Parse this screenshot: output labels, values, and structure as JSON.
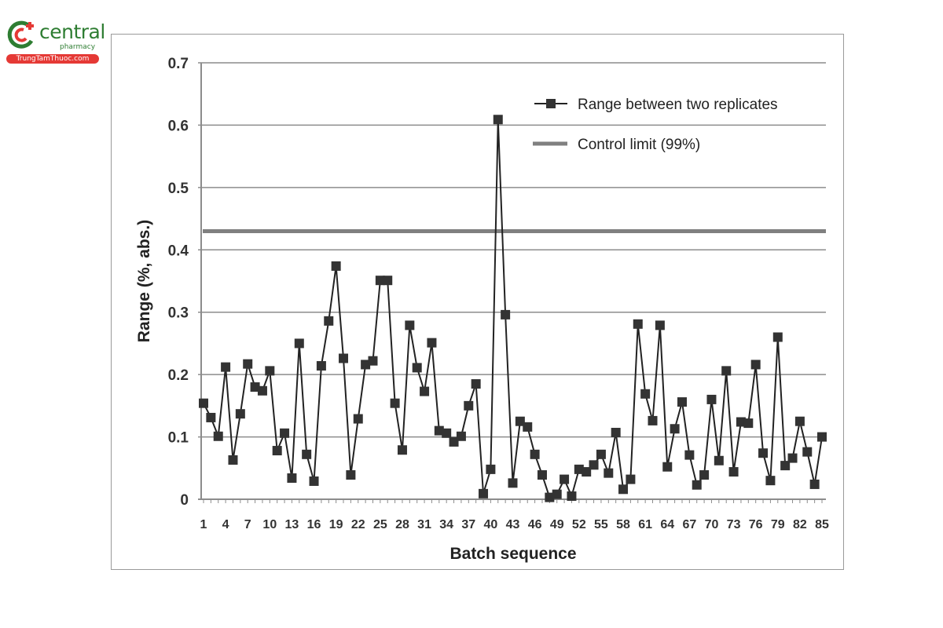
{
  "logo": {
    "brand": "central",
    "subtitle": "pharmacy",
    "site": "TrungTamThuoc.com",
    "colors": {
      "green": "#2e7d32",
      "red": "#e53935"
    }
  },
  "chart_data": {
    "type": "line",
    "title": "",
    "xlabel": "Batch sequence",
    "ylabel": "Range (%, abs.)",
    "ylim": [
      0,
      0.7
    ],
    "xlim": [
      1,
      85
    ],
    "grid": true,
    "legend_position": "upper right",
    "y_ticks": [
      "0",
      "0.1",
      "0.2",
      "0.3",
      "0.4",
      "0.5",
      "0.6",
      "0.7"
    ],
    "x_ticks": [
      "1",
      "4",
      "7",
      "10",
      "13",
      "16",
      "19",
      "22",
      "25",
      "28",
      "31",
      "34",
      "37",
      "40",
      "43",
      "46",
      "49",
      "52",
      "55",
      "58",
      "61",
      "64",
      "67",
      "70",
      "73",
      "76",
      "79",
      "82",
      "85"
    ],
    "x": [
      1,
      2,
      3,
      4,
      5,
      6,
      7,
      8,
      9,
      10,
      11,
      12,
      13,
      14,
      15,
      16,
      17,
      18,
      19,
      20,
      21,
      22,
      23,
      24,
      25,
      26,
      27,
      28,
      29,
      30,
      31,
      32,
      33,
      34,
      35,
      36,
      37,
      38,
      39,
      40,
      41,
      42,
      43,
      44,
      45,
      46,
      47,
      48,
      49,
      50,
      51,
      52,
      53,
      54,
      55,
      56,
      57,
      58,
      59,
      60,
      61,
      62,
      63,
      64,
      65,
      66,
      67,
      68,
      69,
      70,
      71,
      72,
      73,
      74,
      75,
      76,
      77,
      78,
      79,
      80,
      81,
      82,
      83,
      84,
      85
    ],
    "series": [
      {
        "name": "Range between two replicates",
        "marker": "square",
        "color": "#222222",
        "values": [
          0.154,
          0.131,
          0.101,
          0.212,
          0.063,
          0.137,
          0.217,
          0.18,
          0.174,
          0.206,
          0.078,
          0.106,
          0.034,
          0.25,
          0.072,
          0.029,
          0.214,
          0.286,
          0.374,
          0.226,
          0.039,
          0.129,
          0.216,
          0.222,
          0.351,
          0.351,
          0.154,
          0.079,
          0.279,
          0.211,
          0.173,
          0.251,
          0.11,
          0.106,
          0.092,
          0.101,
          0.15,
          0.185,
          0.009,
          0.048,
          0.609,
          0.296,
          0.026,
          0.125,
          0.116,
          0.072,
          0.039,
          0.003,
          0.008,
          0.032,
          0.005,
          0.048,
          0.044,
          0.055,
          0.072,
          0.042,
          0.107,
          0.016,
          0.032,
          0.281,
          0.169,
          0.126,
          0.279,
          0.052,
          0.113,
          0.156,
          0.071,
          0.023,
          0.039,
          0.16,
          0.062,
          0.206,
          0.044,
          0.124,
          0.122,
          0.216,
          0.074,
          0.03,
          0.26,
          0.054,
          0.066,
          0.125,
          0.076,
          0.024,
          0.1
        ]
      },
      {
        "name": "Control limit (99%)",
        "marker": "none",
        "color": "#808080",
        "constant": 0.43
      }
    ]
  }
}
